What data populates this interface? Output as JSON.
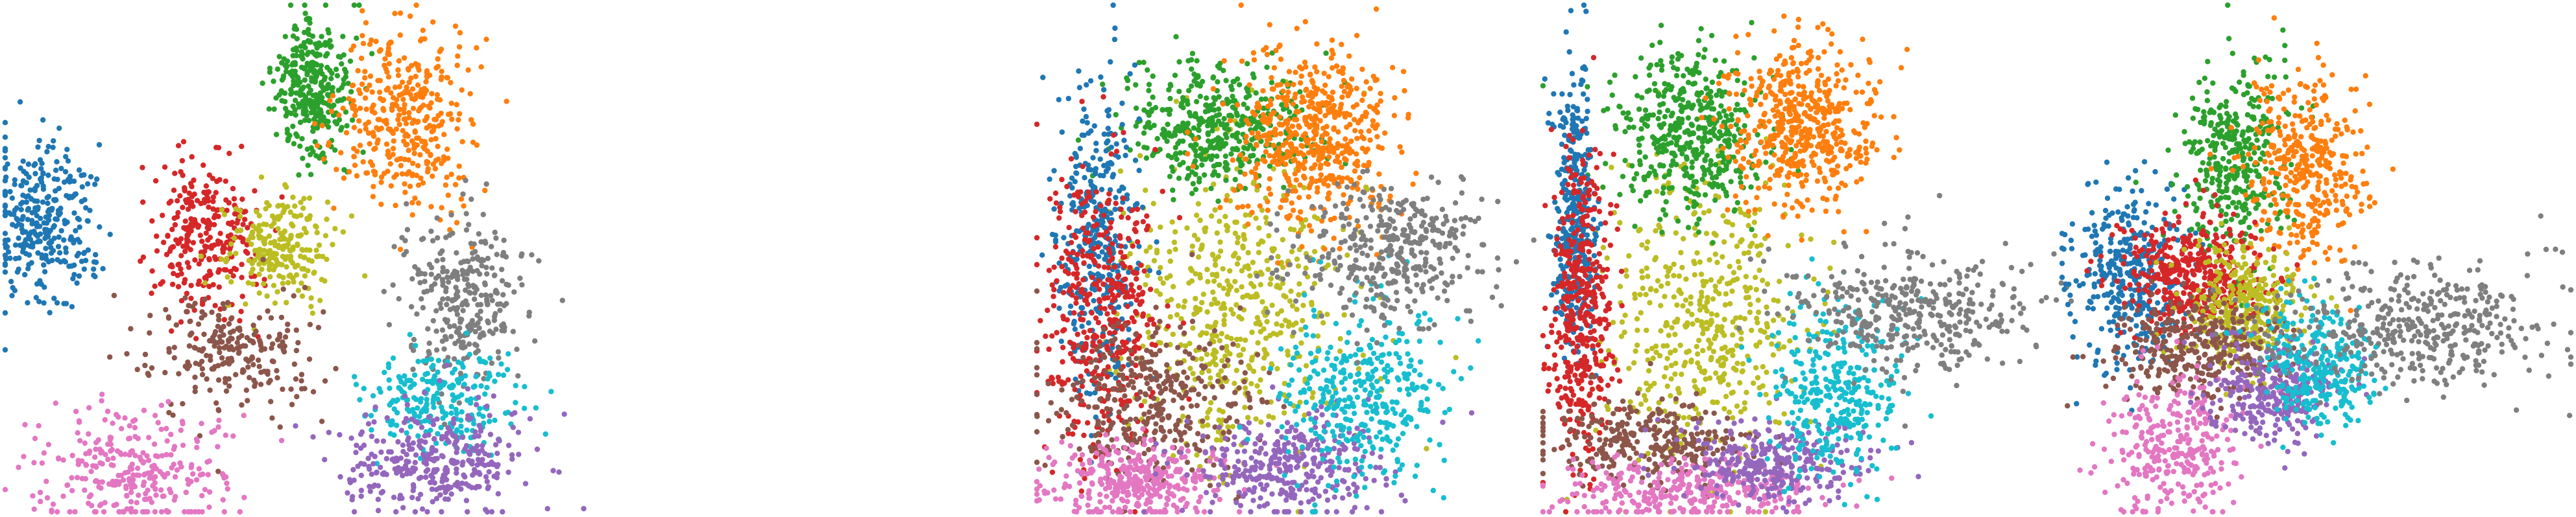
{
  "chart_data": [
    {
      "type": "scatter",
      "panel": 1,
      "xlim": [
        0,
        100
      ],
      "ylim": [
        0,
        100
      ],
      "grid": false,
      "axes_visible": false,
      "legend": "none",
      "clusters": [
        {
          "color": "#1f77b4",
          "center": [
            6,
            56
          ],
          "spread": [
            4,
            8
          ],
          "n": 320
        },
        {
          "color": "#2ca02c",
          "center": [
            48,
            84
          ],
          "spread": [
            3,
            7
          ],
          "n": 330
        },
        {
          "color": "#ff7f0e",
          "center": [
            63,
            78
          ],
          "spread": [
            5,
            9
          ],
          "n": 380
        },
        {
          "color": "#d62728",
          "center": [
            31,
            55
          ],
          "spread": [
            4,
            8
          ],
          "n": 280
        },
        {
          "color": "#bcbd22",
          "center": [
            43,
            52
          ],
          "spread": [
            4,
            6
          ],
          "n": 230
        },
        {
          "color": "#8c564b",
          "center": [
            36,
            32
          ],
          "spread": [
            7,
            6
          ],
          "n": 230
        },
        {
          "color": "#e377c2",
          "center": [
            20,
            8
          ],
          "spread": [
            7,
            6
          ],
          "n": 290
        },
        {
          "color": "#7f7f7f",
          "center": [
            72,
            42
          ],
          "spread": [
            5,
            8
          ],
          "n": 300
        },
        {
          "color": "#17becf",
          "center": [
            68,
            22
          ],
          "spread": [
            6,
            5
          ],
          "n": 240
        },
        {
          "color": "#9467bd",
          "center": [
            67,
            10
          ],
          "spread": [
            7,
            5
          ],
          "n": 330
        }
      ]
    },
    {
      "type": "scatter",
      "panel": 2,
      "xlim": [
        0,
        100
      ],
      "ylim": [
        0,
        100
      ],
      "grid": false,
      "axes_visible": false,
      "legend": "none",
      "clusters": [
        {
          "color": "#bcbd22",
          "center": [
            40,
            40
          ],
          "spread": [
            11,
            15
          ],
          "n": 520
        },
        {
          "color": "#2ca02c",
          "center": [
            36,
            76
          ],
          "spread": [
            9,
            6
          ],
          "n": 440
        },
        {
          "color": "#ff7f0e",
          "center": [
            55,
            74
          ],
          "spread": [
            8,
            9
          ],
          "n": 540
        },
        {
          "color": "#1f77b4",
          "center": [
            12,
            53
          ],
          "spread": [
            4,
            15
          ],
          "n": 380
        },
        {
          "color": "#d62728",
          "center": [
            13,
            40
          ],
          "spread": [
            6,
            15
          ],
          "n": 420
        },
        {
          "color": "#8c564b",
          "center": [
            22,
            22
          ],
          "spread": [
            10,
            8
          ],
          "n": 360
        },
        {
          "color": "#e377c2",
          "center": [
            20,
            6
          ],
          "spread": [
            9,
            4
          ],
          "n": 340
        },
        {
          "color": "#9467bd",
          "center": [
            48,
            9
          ],
          "spread": [
            10,
            5
          ],
          "n": 330
        },
        {
          "color": "#17becf",
          "center": [
            64,
            23
          ],
          "spread": [
            8,
            9
          ],
          "n": 360
        },
        {
          "color": "#7f7f7f",
          "center": [
            71,
            51
          ],
          "spread": [
            9,
            7
          ],
          "n": 380
        }
      ]
    },
    {
      "type": "scatter",
      "panel": 3,
      "xlim": [
        0,
        100
      ],
      "ylim": [
        0,
        100
      ],
      "grid": false,
      "axes_visible": false,
      "legend": "none",
      "clusters": [
        {
          "color": "#bcbd22",
          "center": [
            30,
            38
          ],
          "spread": [
            9,
            14
          ],
          "n": 480
        },
        {
          "color": "#2ca02c",
          "center": [
            28,
            75
          ],
          "spread": [
            7,
            8
          ],
          "n": 460
        },
        {
          "color": "#ff7f0e",
          "center": [
            49,
            76
          ],
          "spread": [
            7,
            8
          ],
          "n": 500
        },
        {
          "color": "#1f77b4",
          "center": [
            6,
            58
          ],
          "spread": [
            2,
            14
          ],
          "n": 380
        },
        {
          "color": "#d62728",
          "center": [
            7,
            40
          ],
          "spread": [
            3,
            15
          ],
          "n": 420
        },
        {
          "color": "#8c564b",
          "center": [
            20,
            14
          ],
          "spread": [
            10,
            4
          ],
          "n": 300
        },
        {
          "color": "#e377c2",
          "center": [
            28,
            4
          ],
          "spread": [
            12,
            3
          ],
          "n": 320
        },
        {
          "color": "#9467bd",
          "center": [
            44,
            10
          ],
          "spread": [
            9,
            4
          ],
          "n": 300
        },
        {
          "color": "#17becf",
          "center": [
            55,
            24
          ],
          "spread": [
            6,
            9
          ],
          "n": 340
        },
        {
          "color": "#7f7f7f",
          "center": [
            70,
            40
          ],
          "spread": [
            12,
            6
          ],
          "n": 380
        }
      ]
    },
    {
      "type": "scatter",
      "panel": 4,
      "xlim": [
        0,
        100
      ],
      "ylim": [
        0,
        100
      ],
      "grid": false,
      "axes_visible": false,
      "legend": "none",
      "clusters": [
        {
          "color": "#1f77b4",
          "center": [
            14,
            46
          ],
          "spread": [
            6,
            9
          ],
          "n": 380
        },
        {
          "color": "#2ca02c",
          "center": [
            34,
            70
          ],
          "spread": [
            5,
            9
          ],
          "n": 360
        },
        {
          "color": "#ff7f0e",
          "center": [
            48,
            68
          ],
          "spread": [
            6,
            9
          ],
          "n": 380
        },
        {
          "color": "#d62728",
          "center": [
            26,
            47
          ],
          "spread": [
            7,
            6
          ],
          "n": 420
        },
        {
          "color": "#bcbd22",
          "center": [
            36,
            40
          ],
          "spread": [
            6,
            6
          ],
          "n": 360
        },
        {
          "color": "#8c564b",
          "center": [
            26,
            32
          ],
          "spread": [
            9,
            5
          ],
          "n": 330
        },
        {
          "color": "#e377c2",
          "center": [
            22,
            13
          ],
          "spread": [
            7,
            7
          ],
          "n": 300
        },
        {
          "color": "#9467bd",
          "center": [
            42,
            24
          ],
          "spread": [
            6,
            5
          ],
          "n": 300
        },
        {
          "color": "#17becf",
          "center": [
            50,
            29
          ],
          "spread": [
            6,
            6
          ],
          "n": 300
        },
        {
          "color": "#7f7f7f",
          "center": [
            70,
            36
          ],
          "spread": [
            14,
            6
          ],
          "n": 400
        }
      ]
    }
  ]
}
